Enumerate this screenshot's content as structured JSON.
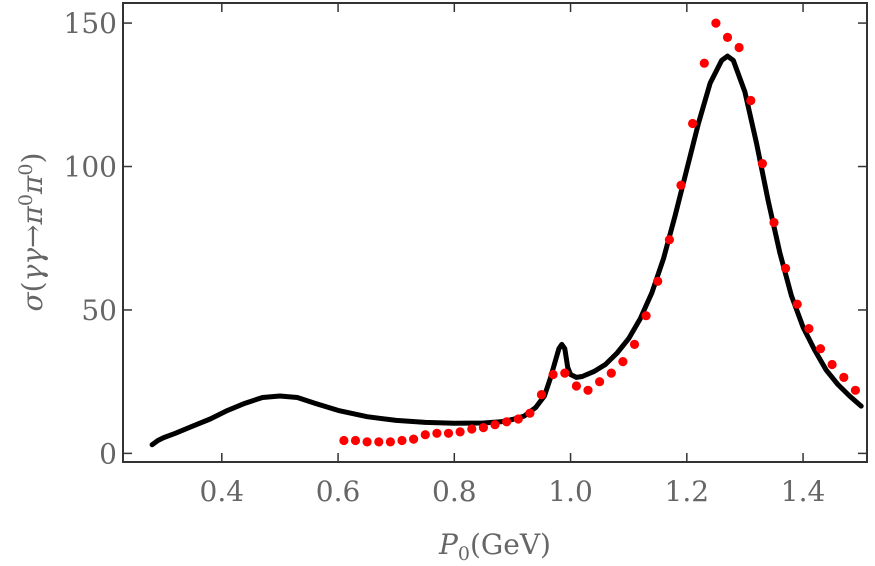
{
  "chart_data": {
    "type": "line",
    "title": "",
    "xlabel": "P0(GeV)",
    "ylabel": "σ(γγ→π0π0)",
    "xlim": [
      0.23,
      1.51
    ],
    "ylim": [
      -3,
      157
    ],
    "xticks": [
      {
        "value": 0.4,
        "label": "0.4"
      },
      {
        "value": 0.6,
        "label": "0.6"
      },
      {
        "value": 0.8,
        "label": "0.8"
      },
      {
        "value": 1.0,
        "label": "1.0"
      },
      {
        "value": 1.2,
        "label": "1.2"
      },
      {
        "value": 1.4,
        "label": "1.4"
      }
    ],
    "yticks": [
      {
        "value": 0,
        "label": "0"
      },
      {
        "value": 50,
        "label": "50"
      },
      {
        "value": 100,
        "label": "100"
      },
      {
        "value": 150,
        "label": "150"
      }
    ],
    "grid": false,
    "series": [
      {
        "kind": "line",
        "color": "#000000",
        "x": [
          0.28,
          0.29,
          0.3,
          0.32,
          0.35,
          0.38,
          0.41,
          0.44,
          0.47,
          0.5,
          0.53,
          0.56,
          0.6,
          0.65,
          0.7,
          0.75,
          0.8,
          0.85,
          0.88,
          0.9,
          0.92,
          0.94,
          0.955,
          0.965,
          0.975,
          0.98,
          0.985,
          0.99,
          0.995,
          1.0,
          1.01,
          1.02,
          1.04,
          1.06,
          1.08,
          1.1,
          1.12,
          1.14,
          1.16,
          1.18,
          1.2,
          1.22,
          1.24,
          1.26,
          1.27,
          1.28,
          1.3,
          1.32,
          1.34,
          1.36,
          1.38,
          1.4,
          1.42,
          1.44,
          1.46,
          1.48,
          1.5
        ],
        "y": [
          3.0,
          4.5,
          5.5,
          7.0,
          9.5,
          12.0,
          15.0,
          17.5,
          19.5,
          20.0,
          19.5,
          17.5,
          15.0,
          12.8,
          11.5,
          10.8,
          10.5,
          10.6,
          11.0,
          11.8,
          13.0,
          16.0,
          20.0,
          26.0,
          33.0,
          36.5,
          38.0,
          36.5,
          30.0,
          27.5,
          26.5,
          26.8,
          28.5,
          31.0,
          35.0,
          40.0,
          47.0,
          56.0,
          68.0,
          83.0,
          99.0,
          115.0,
          129.0,
          137.0,
          138.5,
          137.0,
          126.0,
          108.0,
          88.0,
          70.0,
          55.0,
          44.0,
          36.0,
          29.0,
          24.0,
          20.0,
          16.5
        ]
      },
      {
        "kind": "scatter",
        "color": "#ff0000",
        "x": [
          0.61,
          0.63,
          0.65,
          0.67,
          0.69,
          0.71,
          0.73,
          0.75,
          0.77,
          0.79,
          0.81,
          0.83,
          0.85,
          0.87,
          0.89,
          0.91,
          0.93,
          0.95,
          0.97,
          0.99,
          1.01,
          1.03,
          1.05,
          1.07,
          1.09,
          1.11,
          1.13,
          1.15,
          1.17,
          1.19,
          1.21,
          1.23,
          1.25,
          1.27,
          1.29,
          1.31,
          1.33,
          1.35,
          1.37,
          1.39,
          1.41,
          1.43,
          1.45,
          1.47,
          1.49
        ],
        "y": [
          4.5,
          4.5,
          4.0,
          4.0,
          4.0,
          4.5,
          5.0,
          6.5,
          7.0,
          7.0,
          7.5,
          8.5,
          9.0,
          10.0,
          11.0,
          12.0,
          14.0,
          20.5,
          27.5,
          28.0,
          23.5,
          22.0,
          25.0,
          28.0,
          32.0,
          38.0,
          48.0,
          60.0,
          74.5,
          93.5,
          115.0,
          136.0,
          150.0,
          145.0,
          141.5,
          123.0,
          101.0,
          80.5,
          64.5,
          52.0,
          43.5,
          36.5,
          31.0,
          26.5,
          22.0
        ]
      }
    ]
  }
}
